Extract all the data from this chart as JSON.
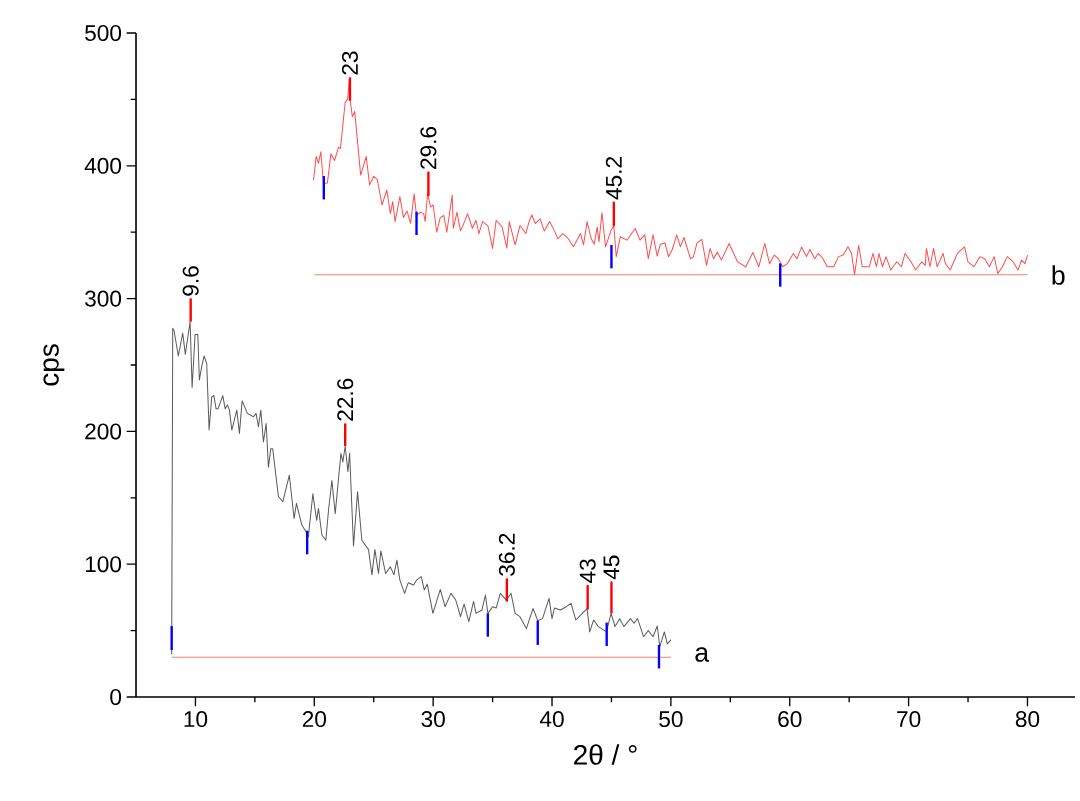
{
  "chart_data": {
    "type": "line",
    "xlabel": "2θ / °",
    "ylabel": "cps",
    "xlim": [
      5,
      84
    ],
    "ylim": [
      0,
      500
    ],
    "xticks": [
      10,
      20,
      30,
      40,
      50,
      60,
      70,
      80
    ],
    "yticks": [
      0,
      100,
      200,
      300,
      400,
      500
    ],
    "series": [
      {
        "name": "a",
        "color": "#5a5a5a",
        "x": [
          8.0,
          8.09,
          8.2,
          8.56,
          8.93,
          9.15,
          9.55,
          9.72,
          9.97,
          10.2,
          10.33,
          10.53,
          10.73,
          10.95,
          11.15,
          11.37,
          11.55,
          11.74,
          11.9,
          12.3,
          12.5,
          12.7,
          12.86,
          13.06,
          13.48,
          13.7,
          13.93,
          14.37,
          14.88,
          15.1,
          15.3,
          15.5,
          15.72,
          15.95,
          16.14,
          16.34,
          16.5,
          16.98,
          17.35,
          17.9,
          18.3,
          18.5,
          18.95,
          19.3,
          19.5,
          19.88,
          20.2,
          20.35,
          20.64,
          20.97,
          21.2,
          21.48,
          21.76,
          22.24,
          22.4,
          22.6,
          22.83,
          22.97,
          23.3,
          23.64,
          24.0,
          24.56,
          24.85,
          25.1,
          25.4,
          25.6,
          26.0,
          26.4,
          26.7,
          26.95,
          27.2,
          27.6,
          27.9,
          28.35,
          28.6,
          29.0,
          29.25,
          29.5,
          29.98,
          30.6,
          31.0,
          31.5,
          31.9,
          32.3,
          32.6,
          33.0,
          33.4,
          33.6,
          34.1,
          34.4,
          34.6,
          35.0,
          35.3,
          35.65,
          36.16,
          36.55,
          36.9,
          37.3,
          37.84,
          38.4,
          38.8,
          39.2,
          39.75,
          40.0,
          40.2,
          40.7,
          41.2,
          41.6,
          42.0,
          42.55,
          42.95,
          43.17,
          43.5,
          43.9,
          44.58,
          44.97,
          45.3,
          45.7,
          46.05,
          46.6,
          46.9,
          47.2,
          47.7,
          48.1,
          48.5,
          48.85,
          49.07,
          49.45,
          49.7,
          50.0
        ],
        "values": [
          32,
          277.6,
          276,
          256.8,
          274,
          258,
          282.6,
          233,
          273,
          273,
          238.7,
          249,
          256.8,
          251,
          201,
          226,
          227,
          217,
          217,
          227,
          217,
          220,
          216,
          201,
          216,
          198.5,
          223,
          213.6,
          211,
          213.6,
          203.5,
          216,
          192,
          206,
          173,
          187,
          187,
          151,
          147,
          167,
          134.5,
          145.8,
          129.5,
          124.5,
          120.7,
          153,
          133,
          142,
          122,
          118,
          141,
          163,
          138,
          183.5,
          177,
          189,
          169.6,
          183.5,
          113.7,
          154.6,
          118,
          111,
          92,
          111,
          93,
          110,
          93,
          98,
          92,
          103,
          88,
          78,
          86,
          84.3,
          88,
          90.6,
          80.6,
          85,
          63,
          81,
          68,
          78,
          73,
          60.5,
          70,
          56.7,
          72,
          63,
          65.5,
          76.8,
          63,
          68,
          67,
          78,
          73,
          78,
          63,
          60.5,
          51.5,
          66.6,
          57.5,
          59,
          74.3,
          59,
          67,
          65.5,
          68,
          70.5,
          58,
          63,
          66.6,
          49,
          58,
          53,
          49,
          63,
          53,
          59,
          53,
          59,
          55.5,
          59,
          45.4,
          50,
          45.4,
          53.5,
          38,
          49,
          40,
          43
        ]
      },
      {
        "name": "b",
        "color": "#ff4d4d",
        "x": [
          19.93,
          20.16,
          20.35,
          20.55,
          20.77,
          21.1,
          21.4,
          21.7,
          22.04,
          22.2,
          22.6,
          22.8,
          22.97,
          23.02,
          23.2,
          23.4,
          23.9,
          24.37,
          24.65,
          24.99,
          25.3,
          25.7,
          26.1,
          26.4,
          26.6,
          26.8,
          27.2,
          27.5,
          27.8,
          28.1,
          28.4,
          28.6,
          28.9,
          29.2,
          29.33,
          29.53,
          29.78,
          30.0,
          30.3,
          30.6,
          30.9,
          31.15,
          31.6,
          31.7,
          32.0,
          32.3,
          32.5,
          32.9,
          33.3,
          33.6,
          33.85,
          34.15,
          34.6,
          35.0,
          35.3,
          35.8,
          36.2,
          36.4,
          36.9,
          37.3,
          37.8,
          38.07,
          38.3,
          38.6,
          39.0,
          39.35,
          39.8,
          40.2,
          40.5,
          40.9,
          41.3,
          41.8,
          42.4,
          42.65,
          42.95,
          43.3,
          43.55,
          43.8,
          43.95,
          44.2,
          44.5,
          44.95,
          45.2,
          45.4,
          45.75,
          46.3,
          47.0,
          47.4,
          47.8,
          48.1,
          48.5,
          48.85,
          49.1,
          49.5,
          49.8,
          50.1,
          50.5,
          50.8,
          51.1,
          51.65,
          51.9,
          52.2,
          52.6,
          53.0,
          53.3,
          53.6,
          53.9,
          54.25,
          54.9,
          55.6,
          56.3,
          56.9,
          57.4,
          57.9,
          58.3,
          58.7,
          59.05,
          59.4,
          59.8,
          60.3,
          60.6,
          61.0,
          61.4,
          61.7,
          62.1,
          62.4,
          62.8,
          63.15,
          63.7,
          64.1,
          64.5,
          64.9,
          65.2,
          65.45,
          65.8,
          66.1,
          66.7,
          67.0,
          67.3,
          67.5,
          67.8,
          68.1,
          68.5,
          69.0,
          69.4,
          69.7,
          70.2,
          70.6,
          71.1,
          71.4,
          71.5,
          71.8,
          72.1,
          72.4,
          72.9,
          73.1,
          73.5,
          73.8,
          74.1,
          74.7,
          75.0,
          75.5,
          76.0,
          76.4,
          76.8,
          77.2,
          77.5,
          77.9,
          78.3,
          78.8,
          79.2,
          79.5,
          79.8,
          80.0
        ],
        "values": [
          389,
          407,
          402,
          410.6,
          386.7,
          387,
          409,
          404,
          414,
          413,
          448,
          450,
          466,
          449.5,
          437,
          441,
          393,
          407,
          385.5,
          392,
          389.7,
          370.5,
          381.8,
          364,
          373,
          358,
          376.8,
          361,
          366,
          356.6,
          379,
          362.6,
          365,
          364,
          358,
          379,
          369,
          370.5,
          350,
          361,
          362.6,
          350,
          378,
          353,
          365,
          351,
          355,
          364,
          353,
          359,
          349,
          358,
          355,
          337.8,
          359,
          354,
          338,
          358,
          340.5,
          355,
          349,
          358,
          363,
          356.6,
          360,
          351,
          358,
          351,
          345,
          349,
          346,
          339,
          349,
          340.5,
          358,
          345,
          341,
          354,
          342.6,
          364.6,
          339,
          351,
          355,
          331.6,
          346.6,
          344,
          352.8,
          344,
          348,
          330,
          348,
          332,
          340.7,
          342,
          331.6,
          336.6,
          348,
          339,
          346,
          330,
          331.6,
          342,
          344.6,
          325,
          337.8,
          330,
          335,
          329,
          341.5,
          327.7,
          324,
          334.7,
          324,
          341.5,
          326.3,
          332.8,
          330,
          324,
          326.3,
          334,
          330,
          338.8,
          331.6,
          337,
          330,
          334,
          330,
          324,
          324,
          331.6,
          332.8,
          339,
          334,
          317.8,
          340,
          324,
          324,
          334,
          324,
          334,
          324,
          331.6,
          321.5,
          327.7,
          324,
          334,
          327.7,
          321.5,
          327.7,
          325,
          337.8,
          324,
          337.8,
          324,
          334,
          326.3,
          321.5,
          327.7,
          334,
          339,
          327.7,
          324,
          331.6,
          330,
          324,
          331.6,
          319,
          324,
          331.6,
          327.7,
          321.5,
          329,
          326.3,
          332.8
        ]
      },
      {
        "color": "#f08070",
        "x": [
          8,
          50
        ],
        "values": [
          30,
          30
        ]
      },
      {
        "color": "#f08070",
        "x": [
          20,
          80
        ],
        "values": [
          318,
          318
        ]
      },
      {
        "type": "bar",
        "color": "#0000ff",
        "x": [
          8,
          19.4,
          34.6,
          38.8,
          44.6,
          49
        ],
        "base": [
          35.4,
          107.5,
          45.4,
          39.2,
          38.4,
          21.5
        ],
        "values": [
          18,
          17.7,
          17.6,
          18.3,
          17.6,
          17.7
        ]
      },
      {
        "type": "bar",
        "color": "#0000ff",
        "x": [
          20.8,
          28.6,
          45,
          59.2
        ],
        "base": [
          374.7,
          347.9,
          322.8,
          309
        ],
        "values": [
          17.6,
          17.5,
          17.6,
          17.5
        ]
      },
      {
        "type": "bar",
        "color": "#ff0000",
        "x": [
          9.6,
          22.6,
          36.2,
          43,
          45
        ],
        "base": [
          282.6,
          189,
          71.8,
          66,
          63
        ],
        "values": [
          17.6,
          17,
          17.5,
          18.3,
          24
        ]
      },
      {
        "type": "bar",
        "color": "#ff0000",
        "x": [
          23,
          29.6,
          45.2
        ],
        "base": [
          449,
          377.3,
          354.7
        ],
        "values": [
          17.6,
          18.3,
          18.3
        ]
      }
    ],
    "annotations": [
      "9.6",
      "22.6",
      "36.2",
      "43",
      "45",
      "23",
      "29.6",
      "45.2"
    ]
  }
}
